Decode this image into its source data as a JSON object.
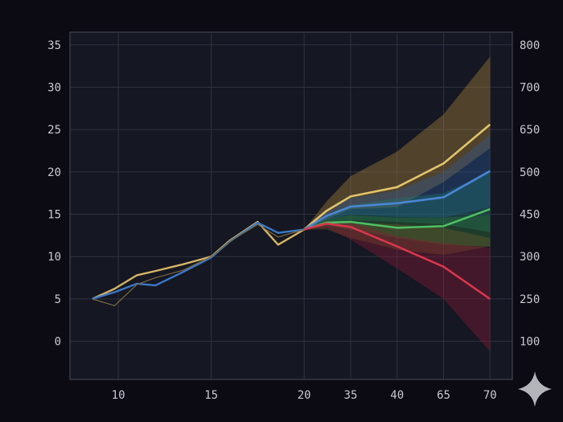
{
  "chart_data": {
    "type": "line",
    "title": "",
    "xlabel": "",
    "ylabel": "",
    "grid": true,
    "x_tick_labels": [
      "10",
      "15",
      "20",
      "35",
      "40",
      "65",
      "70"
    ],
    "x": [
      8.6,
      9.8,
      11,
      12.5,
      13.5,
      15,
      16.2,
      17.5,
      18.7,
      20,
      21.2,
      22.5,
      23.7,
      25,
      26.2,
      27.5,
      28.7,
      30
    ],
    "y_left": {
      "ylim": [
        -4.5,
        36.5
      ],
      "ticks": [
        0,
        5,
        10,
        15,
        20,
        25,
        30,
        35
      ]
    },
    "y_right": {
      "ticks": [
        100,
        250,
        300,
        450,
        500,
        650,
        700,
        800
      ]
    },
    "history": {
      "x": [
        8.6,
        9.8,
        11,
        12,
        13.5,
        15,
        16,
        17.5,
        18.6,
        20
      ],
      "series": [
        {
          "name": "gold",
          "color": "#d5b566",
          "values": [
            5,
            6.2,
            7.8,
            8.3,
            9.1,
            10,
            11.9,
            14.1,
            11.4,
            13.2
          ]
        },
        {
          "name": "blue",
          "color": "#3b78c8",
          "values": [
            5,
            5.8,
            6.8,
            6.6,
            8.2,
            9.9,
            11.8,
            14,
            12.8,
            13.2
          ]
        },
        {
          "name": "dark-trace",
          "color": "#7a6a3f",
          "values": [
            5,
            4.2,
            6.7,
            7.5,
            8.4,
            10,
            11.8,
            13.8,
            12.3,
            13.2
          ]
        }
      ]
    },
    "forecast": {
      "x": [
        20,
        22.5,
        25,
        30
      ],
      "x_mapping": "forecast axis ticks 35,40,65,70 correspond to internal positions 22.5,25,27.5,30",
      "x_internal": [
        20,
        21.2,
        22.5,
        25,
        27.5,
        30
      ],
      "series": [
        {
          "name": "gold",
          "color": "#e0c36c",
          "band_color": "#b08a3a",
          "values": [
            13.2,
            15.4,
            17.1,
            18.2,
            21,
            25.6
          ],
          "upper": [
            13.2,
            16.5,
            19.5,
            22.4,
            26.8,
            33.6
          ],
          "lower": [
            13.2,
            14.4,
            15.6,
            15.8,
            18.8,
            22.8
          ]
        },
        {
          "name": "blue",
          "color": "#4a86d6",
          "band_color": "#2a5a9c",
          "values": [
            13.2,
            14.8,
            15.9,
            16.3,
            17,
            20.1
          ],
          "upper": [
            13.2,
            15.4,
            16.9,
            17.8,
            20,
            24.4
          ],
          "lower": [
            13.2,
            14.3,
            15,
            14.7,
            14.6,
            15.8
          ]
        },
        {
          "name": "teal",
          "color": "#2fa394",
          "band_color": "#1f7a70",
          "values": [
            13.2,
            14.4,
            15.1,
            15.4,
            15.6,
            16.5
          ],
          "upper": [
            13.2,
            14.9,
            16.1,
            16.9,
            17.5,
            20
          ],
          "lower": [
            13.2,
            14,
            14.3,
            14.1,
            13.8,
            12.9
          ]
        },
        {
          "name": "green",
          "color": "#4fbe63",
          "band_color": "#2f7a37",
          "values": [
            13.2,
            14,
            14.1,
            13.4,
            13.6,
            15.6
          ],
          "upper": [
            13.2,
            14.4,
            14.9,
            14.6,
            14.6,
            14.9
          ],
          "lower": [
            13.2,
            13.6,
            13.2,
            12.2,
            11.4,
            11.2
          ]
        },
        {
          "name": "olive",
          "color": "#8a7a3c",
          "band_color": "#6f5f2a",
          "values": [
            13.2,
            13.8,
            13.2,
            12.4,
            11.6,
            11.2
          ],
          "upper": [
            13.2,
            14.2,
            14,
            13.8,
            13.4,
            12.2
          ],
          "lower": [
            13.2,
            13.2,
            12.2,
            10.8,
            10.2,
            11.2
          ]
        },
        {
          "name": "red",
          "color": "#d8364c",
          "band_color": "#8c1a36",
          "values": [
            13.2,
            13.9,
            13.5,
            11.2,
            8.8,
            5
          ],
          "upper": [
            13.2,
            14,
            14,
            12.4,
            11.6,
            11
          ],
          "lower": [
            13.2,
            13.4,
            12,
            8.6,
            5,
            -1.2
          ]
        }
      ]
    }
  },
  "decor": {
    "sparkle_icon": "four-point-star"
  }
}
